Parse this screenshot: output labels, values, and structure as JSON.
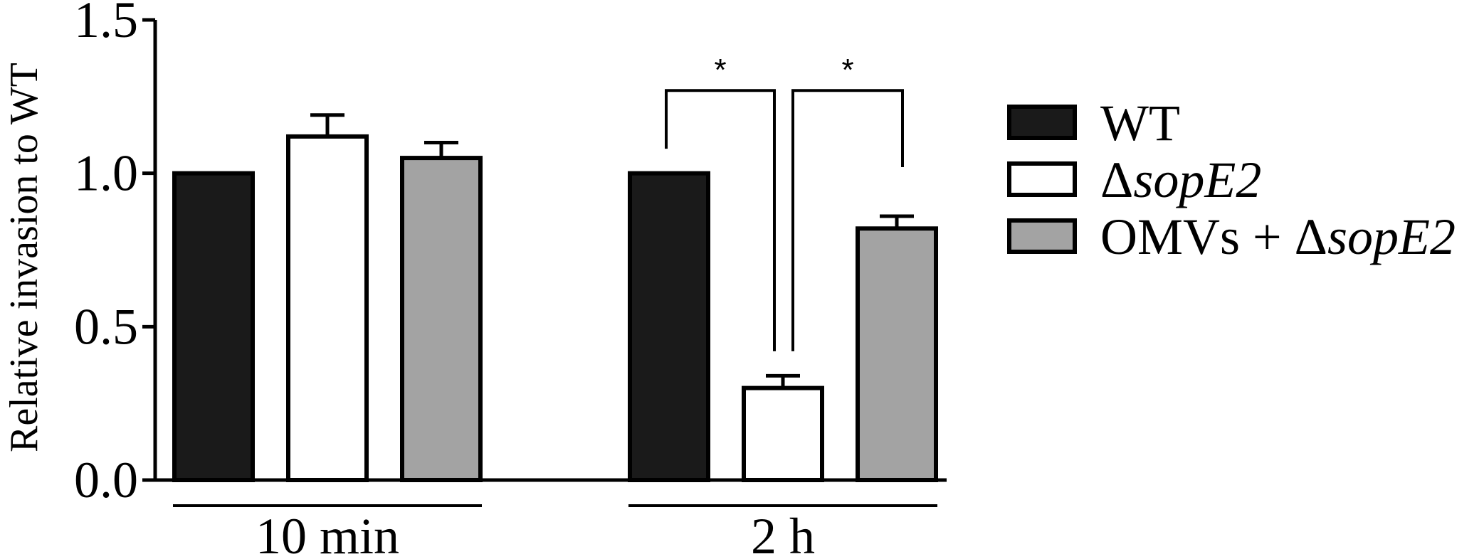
{
  "chart_data": {
    "type": "bar",
    "ylabel": "Relative invasion to WT",
    "ylim": [
      0,
      1.5
    ],
    "yticks": [
      "0.0",
      "0.5",
      "1.0",
      "1.5"
    ],
    "groups": [
      "10 min",
      "2 h"
    ],
    "series": [
      {
        "name": "WT",
        "name_prefix": "",
        "name_italic": "",
        "color": "#1a1a1a",
        "values": [
          1.0,
          1.0
        ],
        "errors": [
          0,
          0
        ]
      },
      {
        "name": "ΔsopE2",
        "name_prefix": "Δ",
        "name_italic": "sopE2",
        "color": "#ffffff",
        "values": [
          1.12,
          0.3
        ],
        "errors": [
          0.07,
          0.04
        ]
      },
      {
        "name": "OMVs + ΔsopE2",
        "name_prefix": "OMVs + Δ",
        "name_italic": "sopE2",
        "color": "#a3a3a3",
        "values": [
          1.05,
          0.82
        ],
        "errors": [
          0.05,
          0.04
        ]
      }
    ],
    "significance": [
      {
        "group": "2 h",
        "from_series": 0,
        "to_series": 1,
        "label": "*"
      },
      {
        "group": "2 h",
        "from_series": 1,
        "to_series": 2,
        "label": "*"
      }
    ],
    "legend_placement": "right",
    "grid": false
  }
}
